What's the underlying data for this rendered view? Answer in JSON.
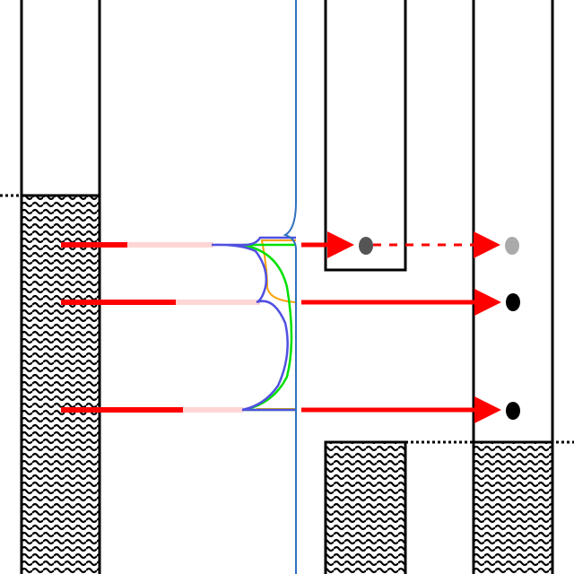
{
  "diagram": {
    "colors": {
      "outline": "#000000",
      "arrow": "#ff0000",
      "arrow_faded": "#ffd6d6",
      "wave_fill": "#000000",
      "curve_blue": "#5050e0",
      "curve_green": "#00e000",
      "curve_orange": "#ffa000",
      "center_line": "#3070c0",
      "dot_dark": "#555555",
      "dot_light": "#aaaaaa",
      "dot_black": "#000000"
    },
    "regions": [
      {
        "name": "left-column",
        "pattern": "wavy-hatch"
      },
      {
        "name": "right-block-inner",
        "pattern": "wavy-hatch"
      },
      {
        "name": "right-block-outer",
        "pattern": "wavy-hatch"
      }
    ],
    "rays": [
      {
        "name": "ray-top",
        "style": "solid-then-dashed",
        "endpoints": [
          "dot-dark",
          "dot-light"
        ]
      },
      {
        "name": "ray-middle",
        "style": "solid",
        "endpoints": [
          "dot-black"
        ]
      },
      {
        "name": "ray-bottom",
        "style": "solid",
        "endpoints": [
          "dot-black"
        ]
      }
    ]
  }
}
